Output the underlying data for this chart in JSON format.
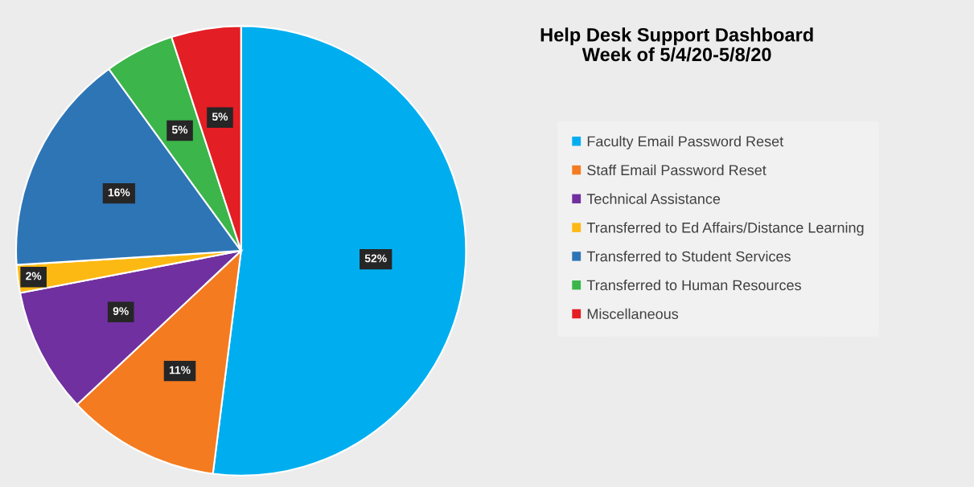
{
  "chart_data": {
    "type": "pie",
    "title": "Help Desk Support Dashboard\nWeek of 5/4/20-5/8/20",
    "categories": [
      "Faculty Email Password Reset",
      "Staff Email Password Reset",
      "Technical Assistance",
      "Transferred to Ed Affairs/Distance Learning",
      "Transferred to Student Services",
      "Transferred to Human Resources",
      "Miscellaneous"
    ],
    "values": [
      52,
      11,
      9,
      2,
      16,
      5,
      5
    ],
    "colors": [
      "#00aeef",
      "#f47b20",
      "#7030a0",
      "#fdb913",
      "#2e75b6",
      "#3cb54a",
      "#e31e24"
    ],
    "value_labels": [
      "52%",
      "11%",
      "9%",
      "2%",
      "16%",
      "5%",
      "5%"
    ],
    "legend": "right"
  }
}
